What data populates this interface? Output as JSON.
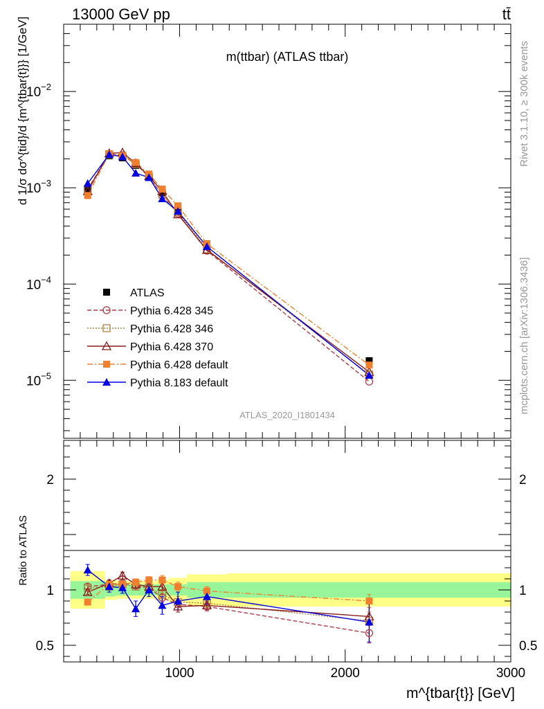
{
  "header": {
    "energy_label": "13000 GeV pp",
    "process_label": "tt̄",
    "rivet_label": "Rivet 3.1.10, ≥ 300k events",
    "site_label": "mcplots.cern.ch [arXiv:1306.3436]"
  },
  "chart_data": [
    {
      "type": "line",
      "title": "m(ttbar) (ATLAS ttbar)",
      "watermark": "ATLAS_2020_I1801434",
      "xlabel": "m^{tbar{t}} [GeV]",
      "ylabel": "d 1/σ dσ^{tid}/d {m^{tbar{t}}} [1/GeV]",
      "yscale": "log",
      "xlim": [
        300,
        3000
      ],
      "ylim": [
        2.5e-06,
        0.05
      ],
      "ytick_labels": [
        "10^-5",
        "10^-4",
        "10^-3",
        "10^-2"
      ],
      "x": [
        445,
        575,
        655,
        735,
        815,
        895,
        990,
        1165,
        2145
      ],
      "series": [
        {
          "name": "ATLAS",
          "color": "#000000",
          "marker": "square-filled",
          "dash": "none",
          "values": [
            0.00094,
            0.00215,
            0.00205,
            0.00171,
            0.00128,
            0.00089,
            0.00063,
            0.000262,
            1.6e-05
          ]
        },
        {
          "name": "Pythia 6.428 345",
          "color": "#b03a48",
          "marker": "circle-open",
          "dash": "6,3",
          "values": [
            0.00097,
            0.00225,
            0.00218,
            0.00177,
            0.0013,
            0.00083,
            0.00054,
            0.000222,
            9.7e-06
          ]
        },
        {
          "name": "Pythia 6.428 346",
          "color": "#b08040",
          "marker": "square-open",
          "dash": "2,2",
          "values": [
            0.00096,
            0.00222,
            0.00215,
            0.00176,
            0.0013,
            0.00085,
            0.00056,
            0.00023,
            1.15e-05
          ]
        },
        {
          "name": "Pythia 6.428 370",
          "color": "#8b1a1a",
          "marker": "triangle-open",
          "dash": "none",
          "values": [
            0.00092,
            0.00228,
            0.00232,
            0.0018,
            0.00132,
            0.00092,
            0.00053,
            0.000226,
            1.22e-05
          ]
        },
        {
          "name": "Pythia 6.428 default",
          "color": "#f08030",
          "marker": "square-filled",
          "dash": "8,3,2,3",
          "values": [
            0.00083,
            0.00226,
            0.00215,
            0.00183,
            0.00139,
            0.00097,
            0.00065,
            0.000262,
            1.44e-05
          ]
        },
        {
          "name": "Pythia 8.183 default",
          "color": "#0000e0",
          "marker": "triangle-filled",
          "dash": "none",
          "values": [
            0.00111,
            0.00222,
            0.0021,
            0.00142,
            0.00128,
            0.00077,
            0.00057,
            0.000245,
            1.13e-05
          ]
        }
      ]
    },
    {
      "type": "line",
      "ylabel": "Ratio to ATLAS",
      "xlim": [
        300,
        3000
      ],
      "ylim": [
        0.35,
        2.35
      ],
      "ytick_labels": [
        "0.5",
        "1",
        "2"
      ],
      "xtick_labels": [
        "1000",
        "2000",
        "3000"
      ],
      "reference": 1.0,
      "bands": [
        {
          "x": [
            340,
            550
          ],
          "inner": [
            0.92,
            1.08
          ],
          "outer": [
            0.83,
            1.17
          ]
        },
        {
          "x": [
            550,
            615
          ],
          "inner": [
            0.94,
            1.06
          ],
          "outer": [
            0.91,
            1.09
          ]
        },
        {
          "x": [
            615,
            695
          ],
          "inner": [
            0.95,
            1.05
          ],
          "outer": [
            0.92,
            1.08
          ]
        },
        {
          "x": [
            695,
            775
          ],
          "inner": [
            0.95,
            1.05
          ],
          "outer": [
            0.92,
            1.08
          ]
        },
        {
          "x": [
            775,
            855
          ],
          "inner": [
            0.95,
            1.05
          ],
          "outer": [
            0.92,
            1.08
          ]
        },
        {
          "x": [
            855,
            935
          ],
          "inner": [
            0.95,
            1.05
          ],
          "outer": [
            0.91,
            1.09
          ]
        },
        {
          "x": [
            935,
            1045
          ],
          "inner": [
            0.95,
            1.05
          ],
          "outer": [
            0.89,
            1.11
          ]
        },
        {
          "x": [
            1045,
            1285
          ],
          "inner": [
            0.93,
            1.07
          ],
          "outer": [
            0.86,
            1.14
          ]
        },
        {
          "x": [
            1285,
            3000
          ],
          "inner": [
            0.93,
            1.07
          ],
          "outer": [
            0.85,
            1.15
          ]
        }
      ],
      "series": [
        {
          "name": "Pythia 6.428 345",
          "values": [
            1.03,
            1.05,
            1.06,
            1.04,
            1.02,
            0.93,
            0.87,
            0.85,
            0.61
          ],
          "err": [
            0.02,
            0.03,
            0.03,
            0.03,
            0.03,
            0.04,
            0.05,
            0.04,
            0.09
          ]
        },
        {
          "name": "Pythia 6.428 346",
          "values": [
            1.02,
            1.03,
            1.05,
            1.03,
            1.02,
            0.96,
            0.89,
            0.88,
            0.72
          ],
          "err": [
            0.02,
            0.03,
            0.03,
            0.03,
            0.03,
            0.04,
            0.05,
            0.04,
            0.08
          ]
        },
        {
          "name": "Pythia 6.428 370",
          "values": [
            0.98,
            1.06,
            1.13,
            1.05,
            1.03,
            1.03,
            0.85,
            0.86,
            0.76
          ],
          "err": [
            0.02,
            0.03,
            0.03,
            0.03,
            0.03,
            0.04,
            0.05,
            0.04,
            0.08
          ]
        },
        {
          "name": "Pythia 6.428 default",
          "values": [
            0.89,
            1.05,
            1.05,
            1.07,
            1.09,
            1.09,
            1.03,
            0.99,
            0.9
          ],
          "err": [
            0.02,
            0.03,
            0.03,
            0.03,
            0.03,
            0.04,
            0.04,
            0.04,
            0.06
          ]
        },
        {
          "name": "Pythia 8.183 default",
          "values": [
            1.18,
            1.03,
            1.02,
            0.83,
            1.0,
            0.86,
            0.9,
            0.94,
            0.71
          ],
          "err": [
            0.05,
            0.05,
            0.05,
            0.07,
            0.06,
            0.08,
            0.08,
            0.07,
            0.18
          ]
        }
      ]
    }
  ]
}
